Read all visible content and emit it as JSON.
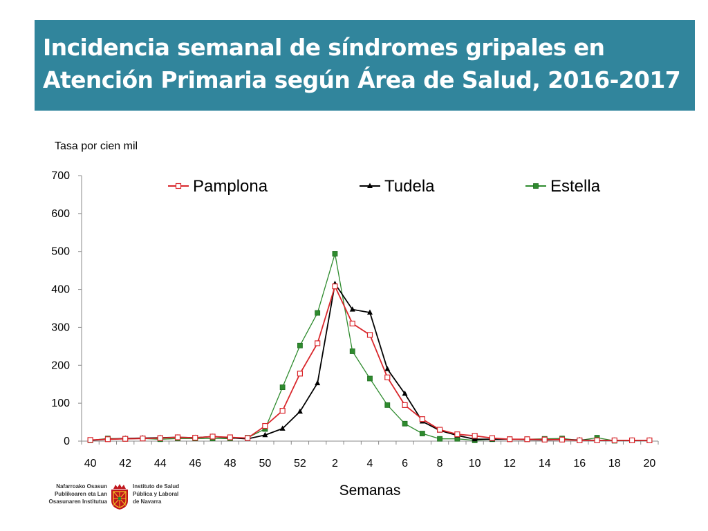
{
  "header": {
    "title_line1": "Incidencia semanal de síndromes gripales en",
    "title_line2": "Atención Primaria según Área de Salud, 2016-2017"
  },
  "chart_data": {
    "type": "line",
    "title": "Incidencia semanal de síndromes gripales en Atención Primaria según Área de Salud, 2016-2017",
    "ylabel": "Tasa por cien mil",
    "xlabel": "Semanas",
    "ylim": [
      0,
      700
    ],
    "yticks": [
      0,
      100,
      200,
      300,
      400,
      500,
      600,
      700
    ],
    "x": [
      "40",
      "41",
      "42",
      "43",
      "44",
      "45",
      "46",
      "47",
      "48",
      "49",
      "50",
      "51",
      "52",
      "1",
      "2",
      "3",
      "4",
      "5",
      "6",
      "7",
      "8",
      "9",
      "10",
      "11",
      "12",
      "13",
      "14",
      "15",
      "16",
      "17",
      "18",
      "19",
      "20"
    ],
    "xtick_labels": [
      "40",
      "42",
      "44",
      "46",
      "48",
      "50",
      "52",
      "2",
      "4",
      "6",
      "8",
      "10",
      "12",
      "14",
      "16",
      "18",
      "20"
    ],
    "legend_position": "top",
    "grid": false,
    "series": [
      {
        "name": "Pamplona",
        "color": "#d9262b",
        "marker": "open-square",
        "values": [
          3,
          5,
          6,
          7,
          8,
          10,
          9,
          12,
          10,
          8,
          40,
          80,
          178,
          258,
          408,
          310,
          280,
          168,
          95,
          58,
          30,
          18,
          14,
          8,
          5,
          5,
          4,
          4,
          2,
          2,
          2,
          2,
          2
        ]
      },
      {
        "name": "Tudela",
        "color": "#000000",
        "marker": "triangle",
        "values": [
          2,
          5,
          7,
          8,
          9,
          10,
          9,
          12,
          9,
          6,
          16,
          33,
          78,
          153,
          415,
          347,
          339,
          190,
          125,
          52,
          28,
          15,
          5,
          5,
          5,
          4,
          3,
          4,
          3,
          2,
          2,
          2,
          2
        ]
      },
      {
        "name": "Estella",
        "color": "#2e8b2e",
        "marker": "filled-square",
        "values": [
          2,
          7,
          6,
          7,
          5,
          7,
          7,
          7,
          7,
          9,
          32,
          142,
          252,
          338,
          494,
          237,
          165,
          95,
          46,
          20,
          6,
          6,
          2,
          5,
          5,
          5,
          6,
          7,
          2,
          9,
          1,
          2,
          2
        ]
      }
    ]
  },
  "footer": {
    "left_line1": "Nafarroako Osasun",
    "left_line2": "Publikoaren eta Lan",
    "left_line3": "Osasunaren Institutua",
    "right_line1": "Instituto de Salud",
    "right_line2": "Pública y Laboral",
    "right_line3": "de Navarra",
    "emblem": "navarra-coat-of-arms-icon",
    "emblem_color": "#c0161d"
  }
}
